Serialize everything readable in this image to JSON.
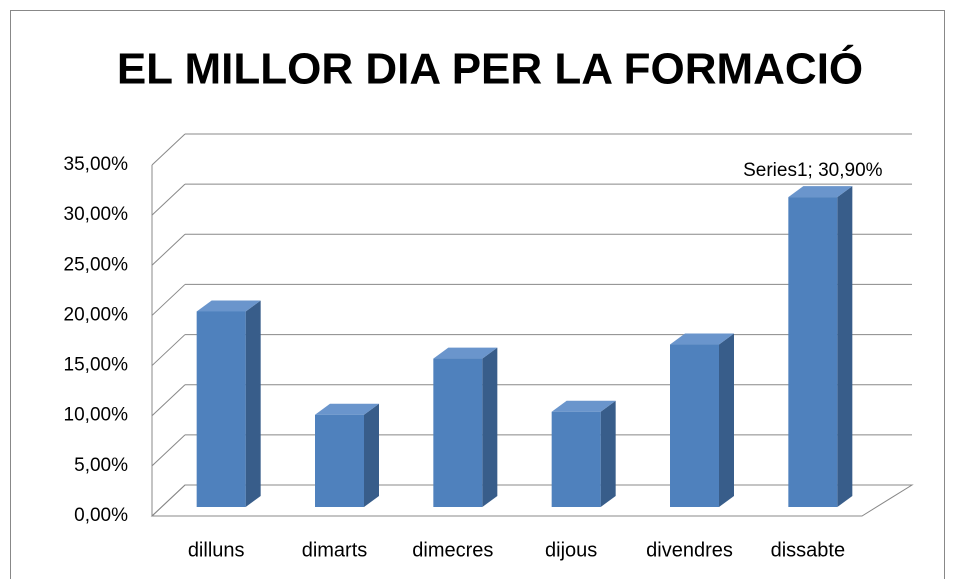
{
  "chart_data": {
    "type": "bar3d",
    "title": "EL MILLOR DIA PER LA FORMACIÓ",
    "categories": [
      "dilluns",
      "dimarts",
      "dimecres",
      "dijous",
      "divendres",
      "dissabte"
    ],
    "values": [
      19.5,
      9.2,
      14.8,
      9.5,
      16.2,
      30.9
    ],
    "value_labels": [
      null,
      null,
      null,
      null,
      null,
      "Series1; 30,90%"
    ],
    "color": "#4f81bd",
    "ylim": [
      0,
      35
    ],
    "yticks": [
      {
        "value": 0,
        "label": "0,00%"
      },
      {
        "value": 5,
        "label": "5,00%"
      },
      {
        "value": 10,
        "label": "10,00%"
      },
      {
        "value": 15,
        "label": "15,00%"
      },
      {
        "value": 20,
        "label": "20,00%"
      },
      {
        "value": 25,
        "label": "25,00%"
      },
      {
        "value": 30,
        "label": "30,00%"
      },
      {
        "value": 35,
        "label": "35,00%"
      }
    ],
    "grid": true
  }
}
